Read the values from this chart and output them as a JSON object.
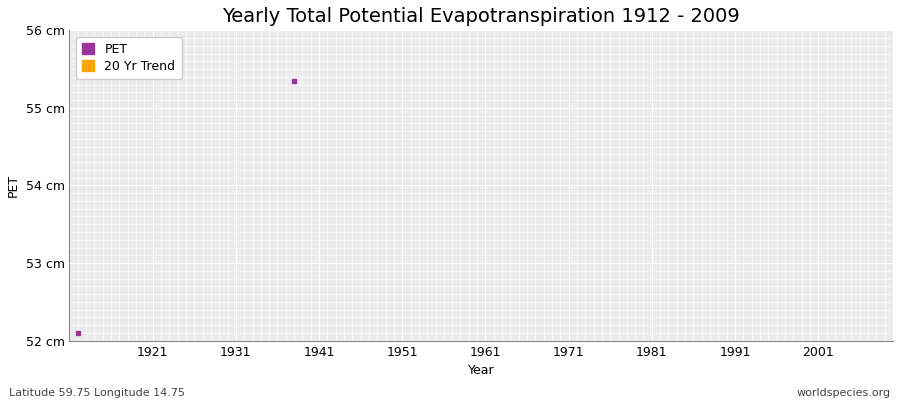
{
  "title": "Yearly Total Potential Evapotranspiration 1912 - 2009",
  "xlabel": "Year",
  "ylabel": "PET",
  "ylim": [
    52,
    56
  ],
  "xlim": [
    1911,
    2010
  ],
  "ytick_labels": [
    "52 cm",
    "53 cm",
    "54 cm",
    "55 cm",
    "56 cm"
  ],
  "ytick_values": [
    52,
    53,
    54,
    55,
    56
  ],
  "xtick_values": [
    1921,
    1931,
    1941,
    1951,
    1961,
    1971,
    1981,
    1991,
    2001
  ],
  "data_points": [
    {
      "year": 1912,
      "value": 52.1
    },
    {
      "year": 1938,
      "value": 55.35
    }
  ],
  "pet_color": "#993399",
  "trend_color": "#FFA500",
  "fig_bg_color": "#ffffff",
  "plot_bg_color": "#ebebeb",
  "grid_color": "#ffffff",
  "legend_labels": [
    "PET",
    "20 Yr Trend"
  ],
  "subtitle_left": "Latitude 59.75 Longitude 14.75",
  "subtitle_right": "worldspecies.org",
  "title_fontsize": 14,
  "label_fontsize": 9,
  "tick_fontsize": 9
}
